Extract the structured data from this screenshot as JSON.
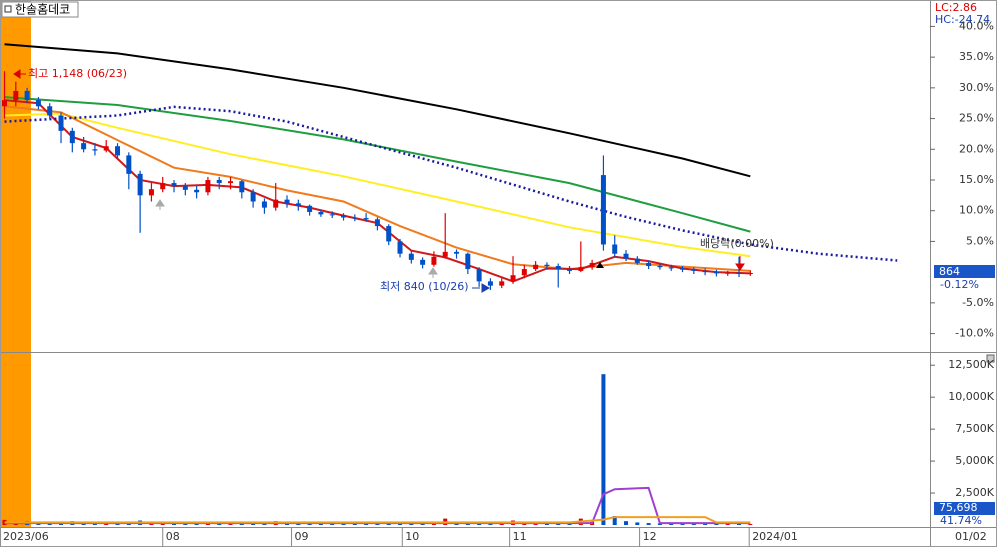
{
  "chart_data": [
    {
      "type": "candlestick",
      "title": "한솔홈데코",
      "xlim": [
        -0.4,
        81.9
      ],
      "ylim": [
        -13,
        44.3
      ],
      "yticks": [
        {
          "value": 40,
          "label": "40.0%"
        },
        {
          "value": 35,
          "label": "35.0%"
        },
        {
          "value": 30,
          "label": "30.0%"
        },
        {
          "value": 25,
          "label": "25.0%"
        },
        {
          "value": 20,
          "label": "20.0%"
        },
        {
          "value": 15,
          "label": "15.0%"
        },
        {
          "value": 10,
          "label": "10.0%"
        },
        {
          "value": 5,
          "label": "5.0%"
        },
        {
          "value": -5,
          "label": "-5.0%"
        },
        {
          "value": -10,
          "label": "-10.0%"
        }
      ],
      "xticks": [
        {
          "value": -0.4,
          "label": "2023/06"
        },
        {
          "value": 14,
          "label": "08"
        },
        {
          "value": 25.4,
          "label": "09"
        },
        {
          "value": 35.2,
          "label": "10"
        },
        {
          "value": 44.7,
          "label": "11"
        },
        {
          "value": 56.2,
          "label": "12"
        },
        {
          "value": 65.9,
          "label": "2024/01"
        }
      ],
      "up_color": "#e00000",
      "down_color": "#0050c8",
      "candles": [
        [
          27,
          32.7,
          25,
          28
        ],
        [
          28,
          31,
          27,
          29.5
        ],
        [
          29.5,
          30,
          27.5,
          28
        ],
        [
          28,
          28.5,
          26.5,
          27
        ],
        [
          27,
          27.5,
          25,
          25.5
        ],
        [
          25.5,
          26,
          21,
          23
        ],
        [
          23,
          23.5,
          19.5,
          21
        ],
        [
          21,
          22,
          19.5,
          20
        ],
        [
          20,
          21,
          19,
          19.8
        ],
        [
          19.8,
          21.5,
          19.5,
          20.5
        ],
        [
          20.5,
          21,
          18.5,
          19
        ],
        [
          19,
          19.5,
          13.5,
          16
        ],
        [
          16,
          16.5,
          6.4,
          12.5
        ],
        [
          12.5,
          14.5,
          11.5,
          13.5
        ],
        [
          13.5,
          15.5,
          13,
          14.5
        ],
        [
          14.5,
          15,
          13,
          14
        ],
        [
          14,
          14.5,
          12.5,
          13.4
        ],
        [
          13.4,
          14,
          12,
          13
        ],
        [
          13,
          15.5,
          12.5,
          15
        ],
        [
          15,
          15.5,
          13.5,
          14.5
        ],
        [
          14.5,
          15.5,
          13.5,
          14.8
        ],
        [
          14.8,
          15,
          12,
          13
        ],
        [
          13,
          13.5,
          10.5,
          11.5
        ],
        [
          11.5,
          12,
          9.5,
          10.5
        ],
        [
          10.5,
          14.5,
          10,
          11.8
        ],
        [
          11.8,
          12.5,
          10.5,
          11.2
        ],
        [
          11.2,
          11.8,
          10,
          10.8
        ],
        [
          10.8,
          11,
          9.2,
          9.8
        ],
        [
          9.8,
          10.2,
          9,
          9.4
        ],
        [
          9.4,
          9.9,
          8.8,
          9.3
        ],
        [
          9.3,
          9.6,
          8.4,
          8.9
        ],
        [
          8.9,
          9.4,
          8.3,
          8.8
        ],
        [
          8.8,
          9.6,
          8.2,
          8.6
        ],
        [
          8.6,
          8.9,
          6.8,
          7.5
        ],
        [
          7.5,
          7.8,
          4.4,
          5
        ],
        [
          5,
          5.4,
          2.4,
          3
        ],
        [
          3,
          3.4,
          1.4,
          2
        ],
        [
          2,
          2.4,
          0.6,
          1.2
        ],
        [
          1.2,
          3.4,
          0.9,
          2.5
        ],
        [
          2.5,
          9.6,
          2.2,
          3.3
        ],
        [
          3.3,
          3.7,
          2.2,
          3
        ],
        [
          3,
          3.2,
          -0.3,
          0.5
        ],
        [
          0.5,
          0.8,
          -2.4,
          -1.5
        ],
        [
          -1.5,
          -1,
          -2.9,
          -2.2
        ],
        [
          -2.2,
          -1,
          -2.6,
          -1.5
        ],
        [
          -1.5,
          2.6,
          -1.9,
          -0.5
        ],
        [
          -0.5,
          1.2,
          -1,
          0.5
        ],
        [
          0.5,
          1.8,
          0.2,
          1.2
        ],
        [
          1.2,
          1.6,
          0.4,
          1
        ],
        [
          1,
          1.4,
          -2.5,
          0.5
        ],
        [
          0.5,
          1,
          -0.3,
          0.2
        ],
        [
          0.2,
          5,
          0,
          0.8
        ],
        [
          0.8,
          2,
          0.4,
          1.5
        ],
        [
          15.8,
          19,
          3.5,
          4.5
        ],
        [
          4.5,
          6,
          2.5,
          3
        ],
        [
          3,
          3.6,
          1.8,
          2.2
        ],
        [
          2.2,
          2.6,
          1.2,
          1.5
        ],
        [
          1.5,
          1.9,
          0.5,
          1
        ],
        [
          1,
          1.4,
          0.4,
          0.8
        ],
        [
          0.8,
          1.2,
          0.2,
          0.6
        ],
        [
          0.6,
          1,
          0,
          0.4
        ],
        [
          0.4,
          0.8,
          -0.3,
          0.2
        ],
        [
          0.2,
          0.6,
          -0.5,
          0
        ],
        [
          0,
          0.4,
          -0.7,
          -0.2
        ],
        [
          -0.2,
          0.2,
          -0.6,
          -0.1
        ],
        [
          -0.1,
          2.5,
          -0.8,
          -0.3
        ],
        [
          -0.3,
          0.3,
          -0.6,
          -0.14
        ]
      ],
      "series": [
        {
          "color": "#000000",
          "x": [
            0,
            10,
            20,
            30,
            40,
            50,
            60,
            66
          ],
          "values": [
            37.1,
            35.6,
            33,
            30,
            26.5,
            22.6,
            18.5,
            15.6
          ]
        },
        {
          "color": "#1e9e3e",
          "x": [
            0,
            10,
            20,
            30,
            40,
            50,
            60,
            66
          ],
          "values": [
            28.5,
            27.2,
            24.6,
            21.6,
            18,
            14.5,
            9.6,
            6.6
          ]
        },
        {
          "color": "#ffee22",
          "x": [
            0,
            5,
            10,
            20,
            30,
            40,
            50,
            60,
            66
          ],
          "values": [
            25.5,
            25.8,
            23.5,
            19.2,
            15.6,
            11.5,
            7.3,
            4.1,
            2.6
          ]
        },
        {
          "color": "#f07a1c",
          "x": [
            0,
            5,
            10,
            15,
            20,
            25,
            30,
            35,
            40,
            45,
            50,
            55,
            60,
            66
          ],
          "values": [
            27,
            26,
            21.5,
            17,
            15.5,
            13.3,
            11.5,
            7.5,
            4,
            1.3,
            0.5,
            1.5,
            0.9,
            0.2
          ]
        },
        {
          "color": "#d01818",
          "x": [
            0,
            3,
            6,
            9,
            12,
            15,
            18,
            21,
            24,
            27,
            30,
            33,
            36,
            39,
            42,
            45,
            48,
            51,
            54,
            57,
            60,
            63,
            66
          ],
          "values": [
            28,
            27.5,
            22,
            20.2,
            15,
            14,
            14.2,
            13.8,
            11.5,
            10.5,
            9.2,
            8,
            3.5,
            2.4,
            0.5,
            -1.5,
            0.6,
            0.5,
            2.5,
            1.8,
            0.6,
            0,
            -0.2
          ]
        },
        {
          "color": "#1a1aa0",
          "dash": true,
          "x": [
            0,
            10,
            15,
            20,
            25,
            30,
            40,
            50,
            55,
            60,
            66,
            72,
            79
          ],
          "values": [
            24.5,
            25.5,
            26.9,
            26.2,
            24.5,
            22,
            17,
            11.5,
            9,
            6.8,
            4.5,
            3,
            1.9
          ]
        }
      ],
      "annotations": [
        "최고 1,148 (06/23)",
        "최저 840 (10/26)",
        "배당락(0.00%)",
        "LC:2.86",
        "HC:-24.74",
        "864",
        "-0.12%"
      ],
      "current_date": "01/02"
    },
    {
      "type": "bar",
      "xlim": [
        -0.4,
        81.9
      ],
      "ylim": [
        0,
        13300
      ],
      "yticks": [
        {
          "value": 12500,
          "label": "12,500K"
        },
        {
          "value": 10000,
          "label": "10,000K"
        },
        {
          "value": 7500,
          "label": "7,500K"
        },
        {
          "value": 5000,
          "label": "5,000K"
        },
        {
          "value": 2500,
          "label": "2,500K"
        }
      ],
      "values": [
        400,
        250,
        300,
        200,
        180,
        220,
        300,
        150,
        120,
        200,
        180,
        250,
        350,
        200,
        150,
        120,
        180,
        150,
        250,
        180,
        200,
        150,
        180,
        140,
        300,
        160,
        140,
        120,
        110,
        130,
        120,
        100,
        140,
        160,
        180,
        150,
        140,
        120,
        200,
        500,
        160,
        200,
        220,
        180,
        150,
        350,
        200,
        180,
        150,
        200,
        140,
        500,
        250,
        11800,
        700,
        300,
        200,
        150,
        130,
        120,
        140,
        110,
        100,
        120,
        90,
        150,
        80
      ],
      "series": [
        {
          "color": "#a040d0",
          "x": [
            0,
            50,
            52,
            53,
            54,
            57,
            58,
            66
          ],
          "values": [
            150,
            150,
            160,
            2400,
            2800,
            2900,
            150,
            150
          ]
        },
        {
          "color": "#f0a020",
          "x": [
            0,
            50,
            53,
            54,
            62,
            63,
            66
          ],
          "values": [
            200,
            200,
            420,
            620,
            620,
            200,
            200
          ]
        }
      ],
      "annotations": [
        "75,698",
        "41.74%"
      ]
    }
  ]
}
